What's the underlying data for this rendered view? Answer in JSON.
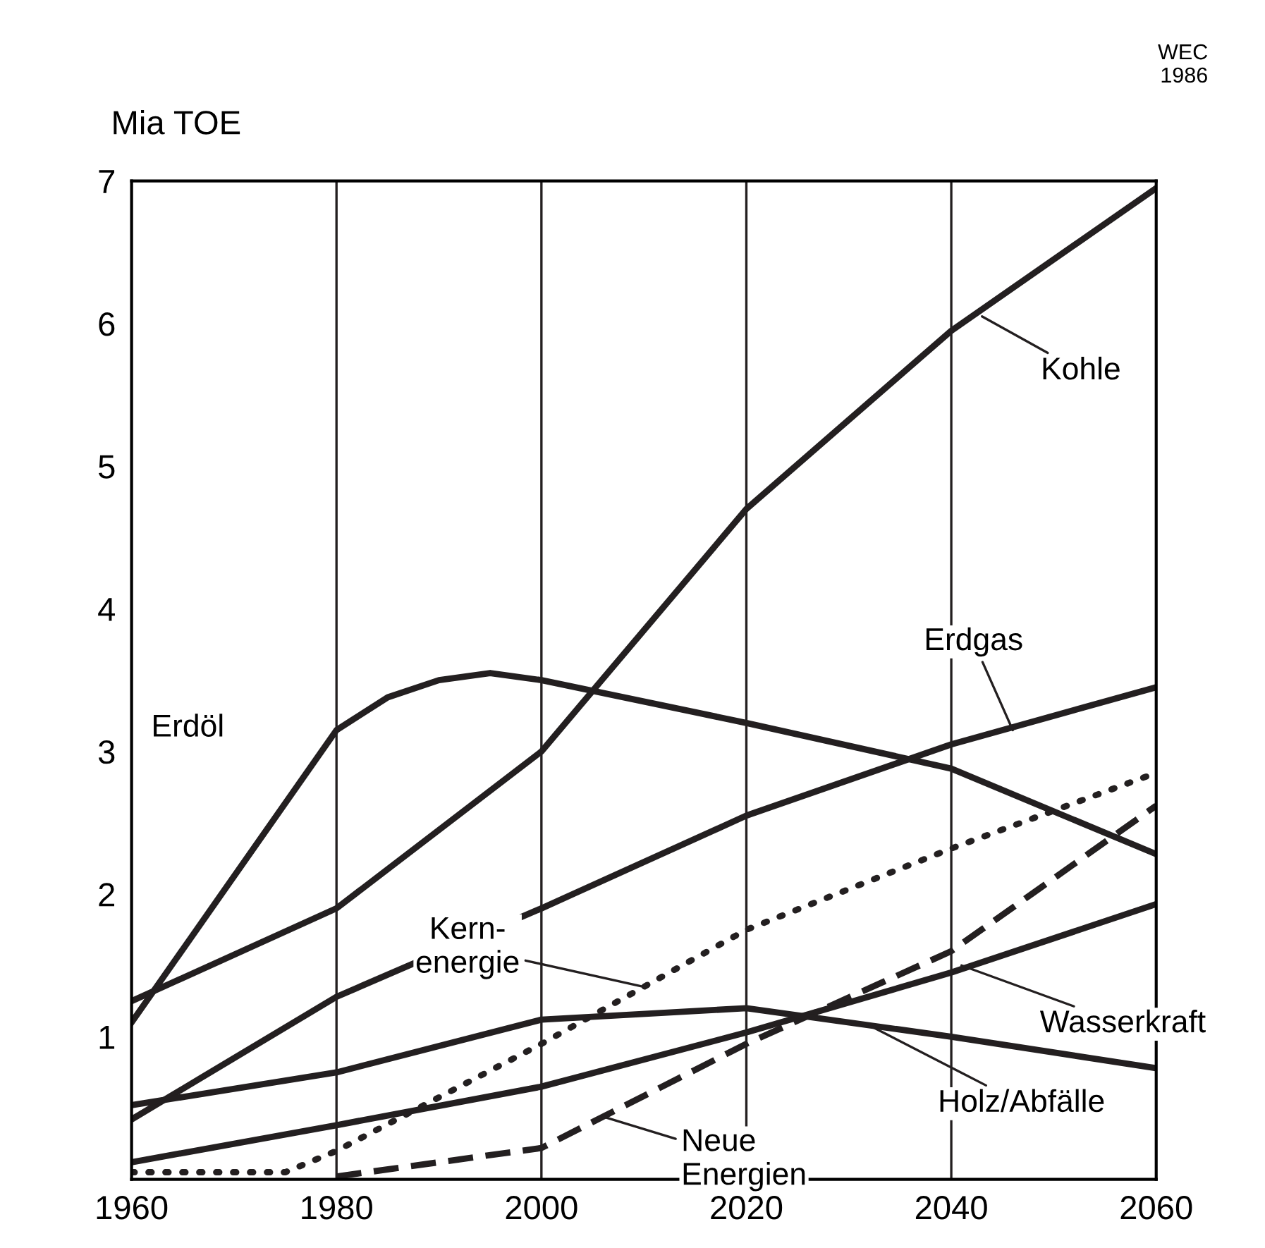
{
  "chart_data": {
    "type": "line",
    "ylabel": "Mia TOE",
    "xlim": [
      1960,
      2060
    ],
    "ylim": [
      0,
      7
    ],
    "xticks": [
      1960,
      1980,
      2000,
      2020,
      2040,
      2060
    ],
    "yticks": [
      1,
      2,
      3,
      4,
      5,
      6,
      7
    ],
    "grid": "x",
    "marker": "none",
    "series": [
      {
        "color": "#231f20",
        "line_style": "solid",
        "x": [
          1960,
          1980,
          2000,
          2020,
          2040,
          2060
        ],
        "values": [
          1.25,
          1.9,
          3.0,
          4.7,
          5.95,
          6.95
        ]
      },
      {
        "color": "#231f20",
        "line_style": "solid",
        "x": [
          1960,
          1980,
          1985,
          1990,
          1995,
          2000,
          2020,
          2040,
          2060
        ],
        "values": [
          1.1,
          3.15,
          3.38,
          3.5,
          3.55,
          3.5,
          3.2,
          2.88,
          2.28
        ]
      },
      {
        "color": "#231f20",
        "line_style": "solid",
        "x": [
          1960,
          1980,
          2000,
          2020,
          2040,
          2060
        ],
        "values": [
          0.42,
          1.28,
          1.9,
          2.55,
          3.05,
          3.45
        ]
      },
      {
        "color": "#231f20",
        "line_style": "dotted",
        "x": [
          1960,
          1975,
          1980,
          2000,
          2020,
          2040,
          2060
        ],
        "values": [
          0.05,
          0.05,
          0.2,
          0.95,
          1.75,
          2.32,
          2.85
        ]
      },
      {
        "color": "#231f20",
        "line_style": "dashed",
        "x": [
          1980,
          2000,
          2020,
          2040,
          2060
        ],
        "values": [
          0.02,
          0.22,
          0.95,
          1.6,
          2.62
        ]
      },
      {
        "color": "#231f20",
        "line_style": "solid",
        "x": [
          1960,
          1980,
          2000,
          2020,
          2040,
          2060
        ],
        "values": [
          0.12,
          0.38,
          0.65,
          1.03,
          1.45,
          1.93
        ]
      },
      {
        "color": "#231f20",
        "line_style": "solid",
        "x": [
          1960,
          1980,
          2000,
          2020,
          2040,
          2060
        ],
        "values": [
          0.52,
          0.75,
          1.12,
          1.2,
          1.0,
          0.78
        ]
      }
    ],
    "annotations": [
      {
        "text": "Kohle",
        "x": 2043,
        "y": 6.05
      },
      {
        "text": "Erdöl",
        "x": 1976,
        "y": 2.75
      },
      {
        "text": "Erdgas",
        "x": 2046,
        "y": 3.15
      },
      {
        "text": "Kern-\nenergie",
        "x": 2010,
        "y": 1.35
      },
      {
        "text": "Wasserkraft",
        "x": 2041,
        "y": 1.5
      },
      {
        "text": "Holz/Abfälle",
        "x": 2032,
        "y": 1.08
      },
      {
        "text": "Neue\nEnergien",
        "x": 2006,
        "y": 0.44
      },
      "WEC\n1986"
    ]
  }
}
